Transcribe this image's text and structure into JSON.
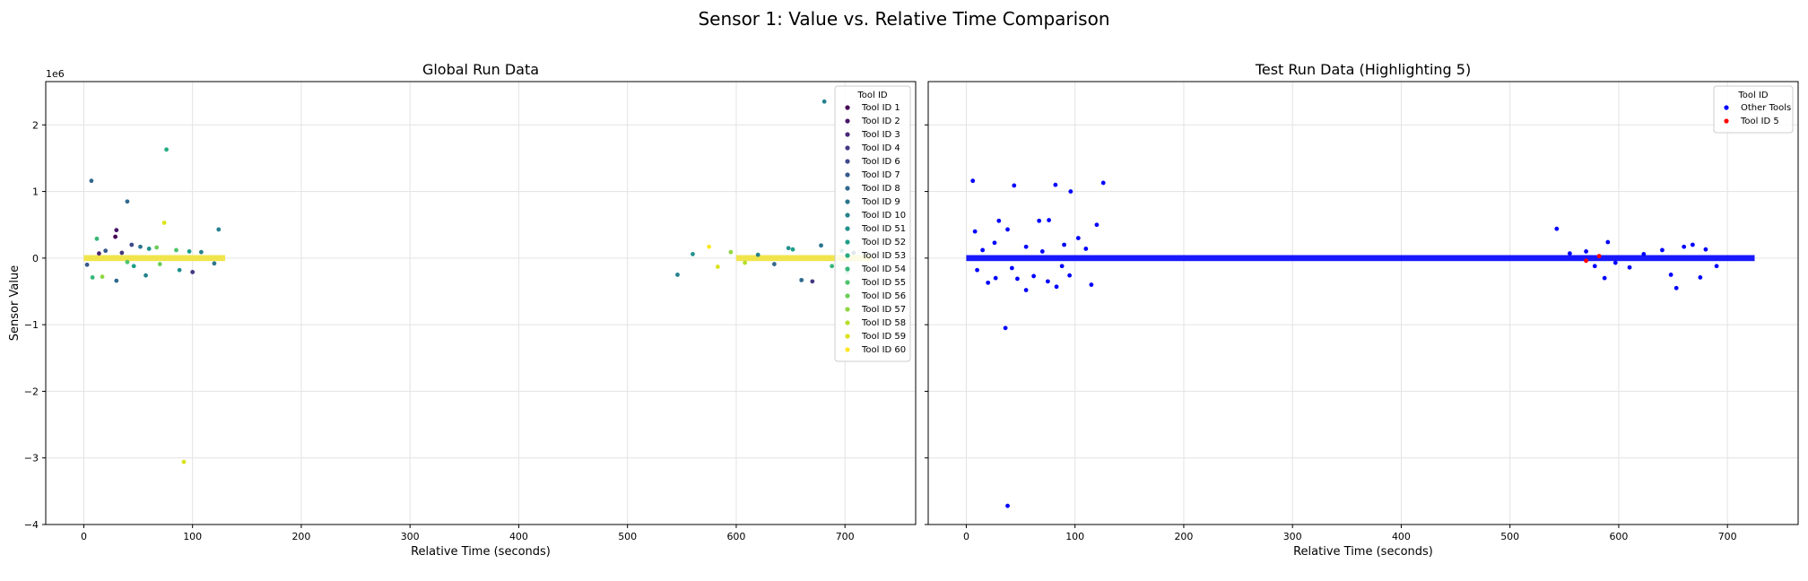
{
  "figure": {
    "title": "Sensor 1: Value vs. Relative Time Comparison"
  },
  "chart_data": [
    {
      "type": "scatter",
      "title": "Global Run Data",
      "xlabel": "Relative Time (seconds)",
      "ylabel": "Sensor Value",
      "y_offset_label": "1e6",
      "xlim": [
        -35,
        765
      ],
      "ylim": [
        -4,
        2.65
      ],
      "x_ticks": [
        0,
        100,
        200,
        300,
        400,
        500,
        600,
        700
      ],
      "y_ticks": [
        -4,
        -3,
        -2,
        -1,
        0,
        1,
        2
      ],
      "y_tick_labels": [
        "−4",
        "−3",
        "−2",
        "−1",
        "0",
        "1",
        "2"
      ],
      "grid": true,
      "legend": {
        "title": "Tool ID",
        "placement": "upper right",
        "entries": [
          "Tool ID 1",
          "Tool ID 2",
          "Tool ID 3",
          "Tool ID 4",
          "Tool ID 6",
          "Tool ID 7",
          "Tool ID 8",
          "Tool ID 9",
          "Tool ID 10",
          "Tool ID 51",
          "Tool ID 52",
          "Tool ID 53",
          "Tool ID 54",
          "Tool ID 55",
          "Tool ID 56",
          "Tool ID 57",
          "Tool ID 58",
          "Tool ID 59",
          "Tool ID 60"
        ],
        "colors": [
          "#440154",
          "#481668",
          "#482878",
          "#443983",
          "#3e4989",
          "#375a8c",
          "#31688e",
          "#2b758e",
          "#26828e",
          "#21918c",
          "#1f9e89",
          "#25ab82",
          "#35b779",
          "#4ec36b",
          "#6ccd5a",
          "#90d743",
          "#b5de2b",
          "#dae319",
          "#fde725"
        ]
      },
      "band_segments": [
        [
          0,
          130
        ],
        [
          600,
          765
        ]
      ],
      "points": [
        {
          "x": 7,
          "y": 1.16,
          "c": "#31688e"
        },
        {
          "x": 40,
          "y": 0.85,
          "c": "#31688e"
        },
        {
          "x": 76,
          "y": 1.63,
          "c": "#25ab82"
        },
        {
          "x": 74,
          "y": 0.53,
          "c": "#dae319"
        },
        {
          "x": 124,
          "y": 0.43,
          "c": "#26828e"
        },
        {
          "x": 30,
          "y": 0.42,
          "c": "#481668"
        },
        {
          "x": 29,
          "y": 0.32,
          "c": "#440154"
        },
        {
          "x": 12,
          "y": 0.29,
          "c": "#35b779"
        },
        {
          "x": 44,
          "y": 0.2,
          "c": "#3e4989"
        },
        {
          "x": 52,
          "y": 0.17,
          "c": "#2b758e"
        },
        {
          "x": 60,
          "y": 0.14,
          "c": "#21918c"
        },
        {
          "x": 20,
          "y": 0.11,
          "c": "#375a8c"
        },
        {
          "x": 85,
          "y": 0.12,
          "c": "#4ec36b"
        },
        {
          "x": 97,
          "y": 0.1,
          "c": "#1f9e89"
        },
        {
          "x": 108,
          "y": 0.09,
          "c": "#26828e"
        },
        {
          "x": 35,
          "y": 0.08,
          "c": "#443983"
        },
        {
          "x": 67,
          "y": 0.16,
          "c": "#6ccd5a"
        },
        {
          "x": 14,
          "y": 0.07,
          "c": "#482878"
        },
        {
          "x": 8,
          "y": -0.29,
          "c": "#35b779"
        },
        {
          "x": 17,
          "y": -0.28,
          "c": "#90d743"
        },
        {
          "x": 30,
          "y": -0.34,
          "c": "#31688e"
        },
        {
          "x": 57,
          "y": -0.26,
          "c": "#26828e"
        },
        {
          "x": 100,
          "y": -0.21,
          "c": "#443983"
        },
        {
          "x": 88,
          "y": -0.18,
          "c": "#21918c"
        },
        {
          "x": 46,
          "y": -0.12,
          "c": "#1f9e89"
        },
        {
          "x": 70,
          "y": -0.09,
          "c": "#6ccd5a"
        },
        {
          "x": 3,
          "y": -0.1,
          "c": "#375a8c"
        },
        {
          "x": 120,
          "y": -0.08,
          "c": "#2b758e"
        },
        {
          "x": 40,
          "y": -0.06,
          "c": "#4ec36b"
        },
        {
          "x": 92,
          "y": -3.06,
          "c": "#dae319"
        },
        {
          "x": 546,
          "y": -0.25,
          "c": "#26828e"
        },
        {
          "x": 560,
          "y": 0.06,
          "c": "#21918c"
        },
        {
          "x": 575,
          "y": 0.17,
          "c": "#fde725"
        },
        {
          "x": 583,
          "y": -0.13,
          "c": "#dae319"
        },
        {
          "x": 595,
          "y": 0.09,
          "c": "#90d743"
        },
        {
          "x": 608,
          "y": -0.07,
          "c": "#b5de2b"
        },
        {
          "x": 620,
          "y": 0.05,
          "c": "#26828e"
        },
        {
          "x": 635,
          "y": -0.09,
          "c": "#31688e"
        },
        {
          "x": 648,
          "y": 0.15,
          "c": "#21918c"
        },
        {
          "x": 652,
          "y": 0.13,
          "c": "#1f9e89"
        },
        {
          "x": 660,
          "y": -0.33,
          "c": "#31688e"
        },
        {
          "x": 670,
          "y": -0.35,
          "c": "#443983"
        },
        {
          "x": 678,
          "y": 0.19,
          "c": "#2b758e"
        },
        {
          "x": 681,
          "y": 2.35,
          "c": "#26828e"
        },
        {
          "x": 688,
          "y": -0.12,
          "c": "#35b779"
        },
        {
          "x": 697,
          "y": 0.11,
          "c": "#21918c"
        },
        {
          "x": 702,
          "y": -0.21,
          "c": "#4ec36b"
        },
        {
          "x": 708,
          "y": 0.08,
          "c": "#31688e"
        }
      ]
    },
    {
      "type": "scatter",
      "title": "Test Run Data (Highlighting 5)",
      "xlabel": "Relative Time (seconds)",
      "ylabel": "",
      "xlim": [
        -35,
        765
      ],
      "ylim": [
        -4,
        2.65
      ],
      "x_ticks": [
        0,
        100,
        200,
        300,
        400,
        500,
        600,
        700
      ],
      "grid": true,
      "legend": {
        "title": "Tool ID",
        "placement": "upper right",
        "entries": [
          "Other Tools",
          "Tool ID 5"
        ],
        "colors": [
          "#0000ff",
          "#ff0000"
        ]
      },
      "band_segments": [
        [
          0,
          727
        ]
      ],
      "points": [
        {
          "x": 6,
          "y": 1.16,
          "c": "#0000ff"
        },
        {
          "x": 44,
          "y": 1.09,
          "c": "#0000ff"
        },
        {
          "x": 82,
          "y": 1.1,
          "c": "#0000ff"
        },
        {
          "x": 96,
          "y": 1.0,
          "c": "#0000ff"
        },
        {
          "x": 126,
          "y": 1.13,
          "c": "#0000ff"
        },
        {
          "x": 8,
          "y": 0.4,
          "c": "#0000ff"
        },
        {
          "x": 30,
          "y": 0.56,
          "c": "#0000ff"
        },
        {
          "x": 67,
          "y": 0.56,
          "c": "#0000ff"
        },
        {
          "x": 76,
          "y": 0.57,
          "c": "#0000ff"
        },
        {
          "x": 38,
          "y": 0.43,
          "c": "#0000ff"
        },
        {
          "x": 120,
          "y": 0.5,
          "c": "#0000ff"
        },
        {
          "x": 103,
          "y": 0.3,
          "c": "#0000ff"
        },
        {
          "x": 26,
          "y": 0.23,
          "c": "#0000ff"
        },
        {
          "x": 55,
          "y": 0.17,
          "c": "#0000ff"
        },
        {
          "x": 90,
          "y": 0.2,
          "c": "#0000ff"
        },
        {
          "x": 15,
          "y": 0.12,
          "c": "#0000ff"
        },
        {
          "x": 70,
          "y": 0.1,
          "c": "#0000ff"
        },
        {
          "x": 110,
          "y": 0.14,
          "c": "#0000ff"
        },
        {
          "x": 36,
          "y": -1.05,
          "c": "#0000ff"
        },
        {
          "x": 38,
          "y": -3.72,
          "c": "#0000ff"
        },
        {
          "x": 20,
          "y": -0.37,
          "c": "#0000ff"
        },
        {
          "x": 27,
          "y": -0.3,
          "c": "#0000ff"
        },
        {
          "x": 47,
          "y": -0.31,
          "c": "#0000ff"
        },
        {
          "x": 55,
          "y": -0.48,
          "c": "#0000ff"
        },
        {
          "x": 62,
          "y": -0.27,
          "c": "#0000ff"
        },
        {
          "x": 75,
          "y": -0.35,
          "c": "#0000ff"
        },
        {
          "x": 83,
          "y": -0.43,
          "c": "#0000ff"
        },
        {
          "x": 95,
          "y": -0.26,
          "c": "#0000ff"
        },
        {
          "x": 115,
          "y": -0.4,
          "c": "#0000ff"
        },
        {
          "x": 10,
          "y": -0.18,
          "c": "#0000ff"
        },
        {
          "x": 42,
          "y": -0.15,
          "c": "#0000ff"
        },
        {
          "x": 88,
          "y": -0.12,
          "c": "#0000ff"
        },
        {
          "x": 543,
          "y": 0.44,
          "c": "#0000ff"
        },
        {
          "x": 590,
          "y": 0.24,
          "c": "#0000ff"
        },
        {
          "x": 570,
          "y": 0.1,
          "c": "#0000ff"
        },
        {
          "x": 555,
          "y": 0.07,
          "c": "#0000ff"
        },
        {
          "x": 578,
          "y": -0.12,
          "c": "#0000ff"
        },
        {
          "x": 587,
          "y": -0.3,
          "c": "#0000ff"
        },
        {
          "x": 597,
          "y": -0.07,
          "c": "#0000ff"
        },
        {
          "x": 610,
          "y": -0.14,
          "c": "#0000ff"
        },
        {
          "x": 623,
          "y": 0.06,
          "c": "#0000ff"
        },
        {
          "x": 640,
          "y": 0.12,
          "c": "#0000ff"
        },
        {
          "x": 648,
          "y": -0.25,
          "c": "#0000ff"
        },
        {
          "x": 653,
          "y": -0.45,
          "c": "#0000ff"
        },
        {
          "x": 660,
          "y": 0.17,
          "c": "#0000ff"
        },
        {
          "x": 668,
          "y": 0.2,
          "c": "#0000ff"
        },
        {
          "x": 675,
          "y": -0.29,
          "c": "#0000ff"
        },
        {
          "x": 680,
          "y": 0.13,
          "c": "#0000ff"
        },
        {
          "x": 690,
          "y": -0.12,
          "c": "#0000ff"
        },
        {
          "x": 570,
          "y": -0.04,
          "c": "#ff0000"
        },
        {
          "x": 582,
          "y": 0.03,
          "c": "#ff0000"
        }
      ]
    }
  ]
}
